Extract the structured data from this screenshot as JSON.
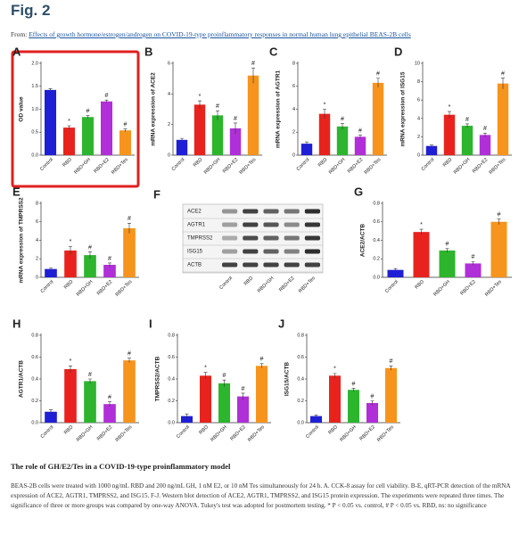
{
  "header": {
    "title": "Fig. 2",
    "from_label": "From:",
    "source_link": "Effects of growth hormone/estrogen/androgen on COVID-19-type proinflammatory responses in normal human lung epithelial BEAS-2B cells"
  },
  "chart_data": [
    {
      "type": "bar",
      "panel": "A",
      "ylabel": "OD value",
      "categories": [
        "Control",
        "RBD",
        "RBD+GH",
        "RBD+E2",
        "RBD+Tes"
      ],
      "values": [
        1.42,
        0.6,
        0.83,
        1.17,
        0.54
      ],
      "errors": [
        0.03,
        0.04,
        0.03,
        0.03,
        0.03
      ],
      "marks": [
        null,
        "*",
        "#",
        "#",
        "#"
      ],
      "colors": [
        "#1f1fd6",
        "#e8231e",
        "#2db52d",
        "#b02fd8",
        "#f7941d"
      ],
      "ylim": [
        0,
        2
      ],
      "yticks": [
        {
          "value": 0,
          "label": "0.0"
        },
        0.5,
        {
          "value": 1,
          "label": "1.0"
        },
        1.5,
        {
          "value": 2,
          "label": "2.0"
        }
      ]
    },
    {
      "type": "bar",
      "panel": "B",
      "ylabel": "mRNA expression of ACE2",
      "categories": [
        "Control",
        "RBD",
        "RBD+GH",
        "RBD+E2",
        "RBD+Tes"
      ],
      "values": [
        1.0,
        3.3,
        2.6,
        1.75,
        5.2
      ],
      "errors": [
        0.1,
        0.25,
        0.3,
        0.35,
        0.5
      ],
      "marks": [
        null,
        "*",
        "#",
        "#",
        "#"
      ],
      "colors": [
        "#1f1fd6",
        "#e8231e",
        "#2db52d",
        "#b02fd8",
        "#f7941d"
      ],
      "ylim": [
        0,
        6
      ],
      "yticks": [
        0,
        2,
        4,
        6
      ]
    },
    {
      "type": "bar",
      "panel": "C",
      "ylabel": "mRNA expression of AGTR1",
      "categories": [
        "Control",
        "RBD",
        "RBD+GH",
        "RBD+E2",
        "RBD+Tes"
      ],
      "values": [
        1.0,
        3.6,
        2.5,
        1.6,
        6.3
      ],
      "errors": [
        0.15,
        0.4,
        0.25,
        0.15,
        0.4
      ],
      "marks": [
        null,
        "*",
        "#",
        "#",
        "#"
      ],
      "colors": [
        "#1f1fd6",
        "#e8231e",
        "#2db52d",
        "#b02fd8",
        "#f7941d"
      ],
      "ylim": [
        0,
        8
      ],
      "yticks": [
        0,
        2,
        4,
        6,
        8
      ]
    },
    {
      "type": "bar",
      "panel": "D",
      "ylabel": "mRNA expression of ISG15",
      "categories": [
        "Control",
        "RBD",
        "RBD+GH",
        "RBD+E2",
        "RBD+Tes"
      ],
      "values": [
        1.0,
        4.4,
        3.2,
        2.2,
        7.8
      ],
      "errors": [
        0.1,
        0.35,
        0.2,
        0.2,
        0.6
      ],
      "marks": [
        null,
        "*",
        "#",
        "#",
        "#"
      ],
      "colors": [
        "#1f1fd6",
        "#e8231e",
        "#2db52d",
        "#b02fd8",
        "#f7941d"
      ],
      "ylim": [
        0,
        10
      ],
      "yticks": [
        0,
        2,
        4,
        6,
        8,
        10
      ]
    },
    {
      "type": "bar",
      "panel": "E",
      "ylabel": "mRNA expression of TMPRSS2",
      "categories": [
        "Control",
        "RBD",
        "RBD+GH",
        "RBD+E2",
        "RBD+Tes"
      ],
      "values": [
        0.9,
        2.9,
        2.4,
        1.35,
        5.3
      ],
      "errors": [
        0.1,
        0.45,
        0.35,
        0.2,
        0.55
      ],
      "marks": [
        null,
        "*",
        "#",
        "#",
        "#"
      ],
      "colors": [
        "#1f1fd6",
        "#e8231e",
        "#2db52d",
        "#b02fd8",
        "#f7941d"
      ],
      "ylim": [
        0,
        8
      ],
      "yticks": [
        0,
        2,
        4,
        6,
        8
      ]
    },
    {
      "type": "bar",
      "panel": "G",
      "ylabel": "ACE2/ACTB",
      "categories": [
        "Control",
        "RBD",
        "RBD+GH",
        "RBD+E2",
        "RBD+Tes"
      ],
      "values": [
        0.08,
        0.49,
        0.29,
        0.15,
        0.6
      ],
      "errors": [
        0.015,
        0.03,
        0.02,
        0.02,
        0.03
      ],
      "marks": [
        null,
        "*",
        "#",
        "#",
        "#"
      ],
      "colors": [
        "#1f1fd6",
        "#e8231e",
        "#2db52d",
        "#b02fd8",
        "#f7941d"
      ],
      "ylim": [
        0,
        0.8
      ],
      "yticks": [
        {
          "value": 0,
          "label": "0.0"
        },
        0.2,
        0.4,
        0.6,
        0.8
      ]
    },
    {
      "type": "bar",
      "panel": "H",
      "ylabel": "AGTR1/ACTB",
      "categories": [
        "Control",
        "RBD",
        "RBD+GH",
        "RBD+E2",
        "RBD+Tes"
      ],
      "values": [
        0.1,
        0.49,
        0.38,
        0.17,
        0.57
      ],
      "errors": [
        0.02,
        0.03,
        0.02,
        0.02,
        0.02
      ],
      "marks": [
        null,
        "*",
        "#",
        "#",
        "#"
      ],
      "colors": [
        "#1f1fd6",
        "#e8231e",
        "#2db52d",
        "#b02fd8",
        "#f7941d"
      ],
      "ylim": [
        0,
        0.8
      ],
      "yticks": [
        {
          "value": 0,
          "label": "0.0"
        },
        0.2,
        0.4,
        0.6,
        0.8
      ]
    },
    {
      "type": "bar",
      "panel": "I",
      "ylabel": "TMPRSS2/ACTB",
      "categories": [
        "Control",
        "RBD",
        "RBD+GH",
        "RBD+E2",
        "RBD+Tes"
      ],
      "values": [
        0.06,
        0.43,
        0.36,
        0.24,
        0.52
      ],
      "errors": [
        0.02,
        0.03,
        0.03,
        0.03,
        0.02
      ],
      "marks": [
        null,
        "*",
        "#",
        "#",
        "#"
      ],
      "colors": [
        "#1f1fd6",
        "#e8231e",
        "#2db52d",
        "#b02fd8",
        "#f7941d"
      ],
      "ylim": [
        0,
        0.8
      ],
      "yticks": [
        {
          "value": 0,
          "label": "0.0"
        },
        0.2,
        0.4,
        0.6,
        0.8
      ]
    },
    {
      "type": "bar",
      "panel": "J",
      "ylabel": "ISG15/ACTB",
      "categories": [
        "Control",
        "RBD",
        "RBD+GH",
        "RBD+E2",
        "RBD+Tes"
      ],
      "values": [
        0.06,
        0.43,
        0.3,
        0.18,
        0.5
      ],
      "errors": [
        0.01,
        0.02,
        0.015,
        0.02,
        0.02
      ],
      "marks": [
        null,
        "*",
        "#",
        "#",
        "#"
      ],
      "colors": [
        "#1f1fd6",
        "#e8231e",
        "#2db52d",
        "#b02fd8",
        "#f7941d"
      ],
      "ylim": [
        0,
        0.8
      ],
      "yticks": [
        {
          "value": 0,
          "label": "0.0"
        },
        0.2,
        0.4,
        0.6,
        0.8
      ]
    }
  ],
  "blot": {
    "panel": "F",
    "rows": [
      "ACE2",
      "AGTR1",
      "TMPRSS2",
      "ISG15",
      "ACTB"
    ],
    "lanes": [
      "Control",
      "RBD",
      "RBD+GH",
      "RBD+E2",
      "RBD+Tes"
    ]
  },
  "caption": {
    "title": "The role of GH/E2/Tes in a COVID-19-type proinflammatory model",
    "body": "BEAS-2B cells were treated with 1000 ng/mL RBD and 200 ng/mL GH, 1 nM E2, or 10 nM Tes simultaneously for 24 h. A. CCK-8 assay for cell viability. B-E, qRT-PCR detection of the mRNA expression of ACE2, AGTR1, TMPRSS2, and ISG15. F-J. Western blot detection of ACE2, AGTR1, TMPRSS2, and ISG15 protein expression. The experiments were repeated three times. The significance of three or more groups was compared by one-way ANOVA. Tukey's test was adopted for postmortem testing. * P < 0.05 vs. control, # P < 0.05 vs. RBD, ns: no significance"
  }
}
